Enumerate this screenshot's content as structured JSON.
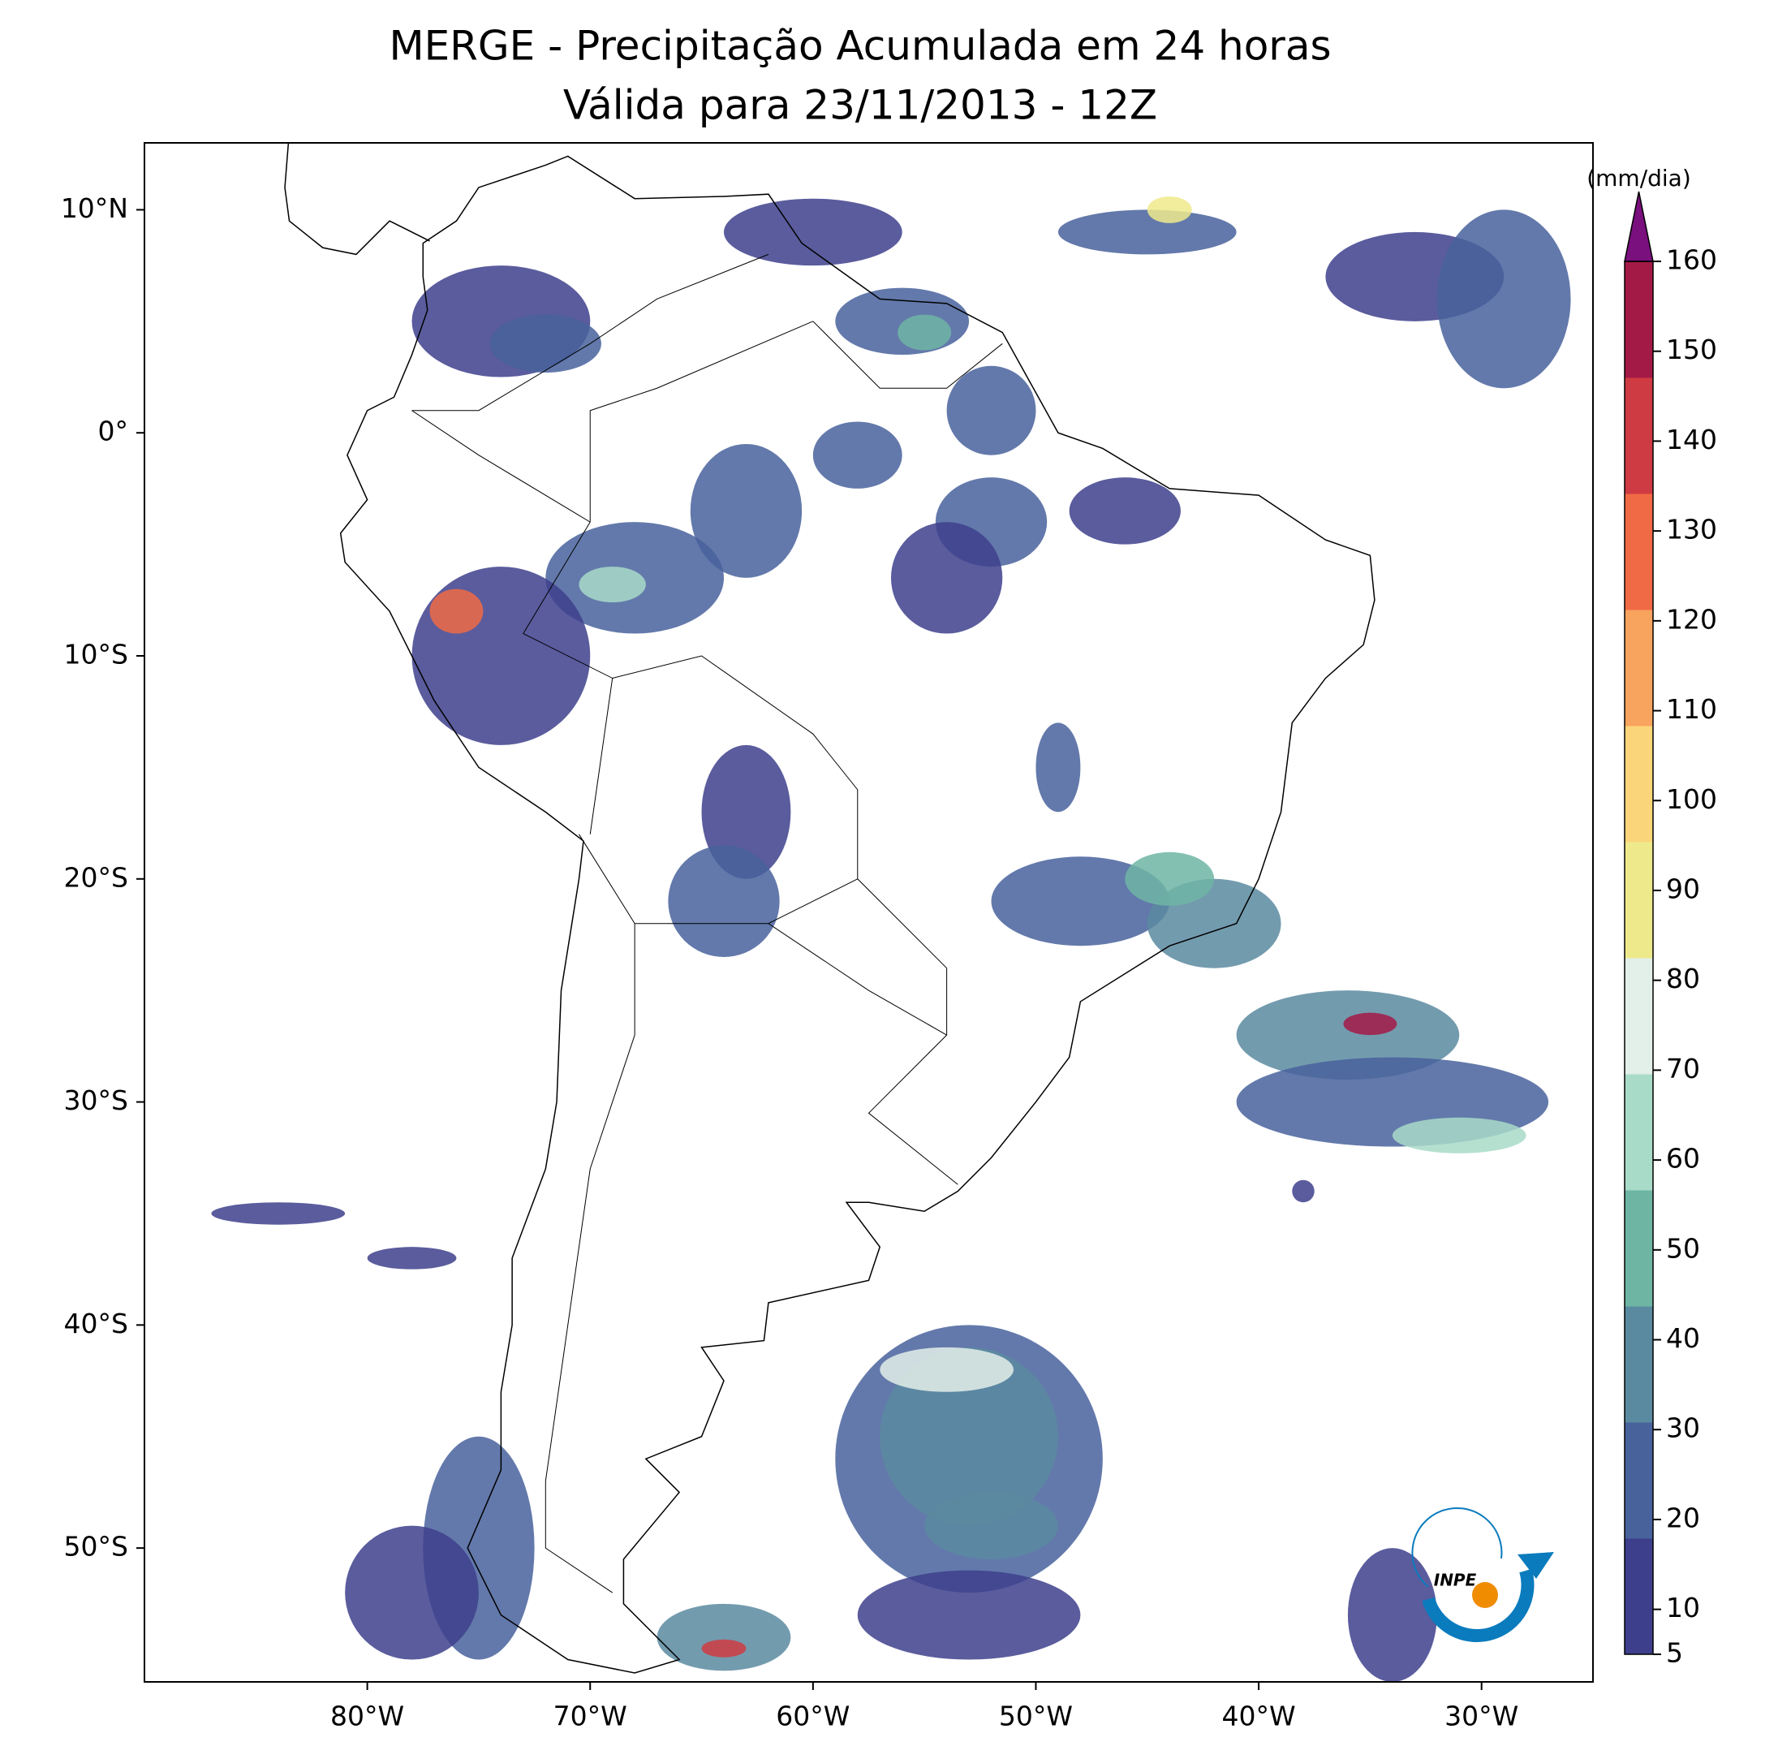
{
  "chart_data": {
    "type": "map",
    "title": "MERGE - Precipitação Acumulada em 24 horas",
    "subtitle": "Válida para 23/11/2013 - 12Z",
    "xlim": [
      -90,
      -25
    ],
    "ylim": [
      -56,
      13
    ],
    "xticks": [
      {
        "value": -80,
        "label": "80°W"
      },
      {
        "value": -70,
        "label": "70°W"
      },
      {
        "value": -60,
        "label": "60°W"
      },
      {
        "value": -50,
        "label": "50°W"
      },
      {
        "value": -40,
        "label": "40°W"
      },
      {
        "value": -30,
        "label": "30°W"
      }
    ],
    "yticks": [
      {
        "value": 10,
        "label": "10°N"
      },
      {
        "value": 0,
        "label": "0°"
      },
      {
        "value": -10,
        "label": "10°S"
      },
      {
        "value": -20,
        "label": "20°S"
      },
      {
        "value": -30,
        "label": "30°S"
      },
      {
        "value": -40,
        "label": "40°S"
      },
      {
        "value": -50,
        "label": "50°S"
      }
    ],
    "colorbar": {
      "label": "(mm/dia)",
      "lim": [
        5,
        160
      ],
      "ticks": [
        5,
        10,
        20,
        30,
        40,
        50,
        60,
        70,
        80,
        90,
        100,
        110,
        120,
        130,
        140,
        150,
        160
      ],
      "colors": [
        "#3d3f8c",
        "#48629c",
        "#5a8aa0",
        "#6fb5a4",
        "#a8dbc8",
        "#e3efe9",
        "#eeea8c",
        "#fbd57a",
        "#f8a35e",
        "#f06a45",
        "#cf3b42",
        "#a31a46"
      ],
      "extend_color": "#7a0f7e"
    },
    "logo": "INPE"
  }
}
